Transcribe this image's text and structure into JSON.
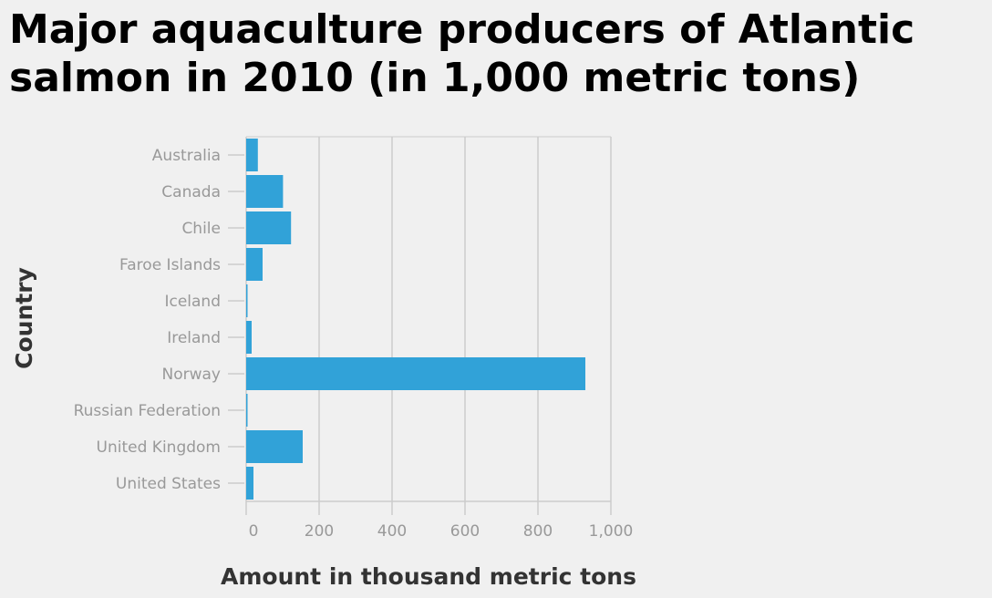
{
  "chart_data": {
    "type": "bar",
    "orientation": "horizontal",
    "title": "Major aquaculture producers of Atlantic salmon in 2010 (in 1,000 metric tons)",
    "xlabel": "Amount in thousand metric tons",
    "ylabel": "Country",
    "categories": [
      "Australia",
      "Canada",
      "Chile",
      "Faroe Islands",
      "Iceland",
      "Ireland",
      "Norway",
      "Russian Federation",
      "United Kingdom",
      "United States"
    ],
    "values": [
      32,
      101,
      123,
      45,
      1,
      15,
      930,
      2,
      155,
      20
    ],
    "xlim": [
      0,
      1000
    ],
    "xticks": [
      0,
      200,
      400,
      600,
      800,
      1000
    ],
    "xtick_labels": [
      "0",
      "200",
      "400",
      "600",
      "800",
      "1,000"
    ],
    "grid": "vertical",
    "bar_color": "#31a2d8"
  }
}
